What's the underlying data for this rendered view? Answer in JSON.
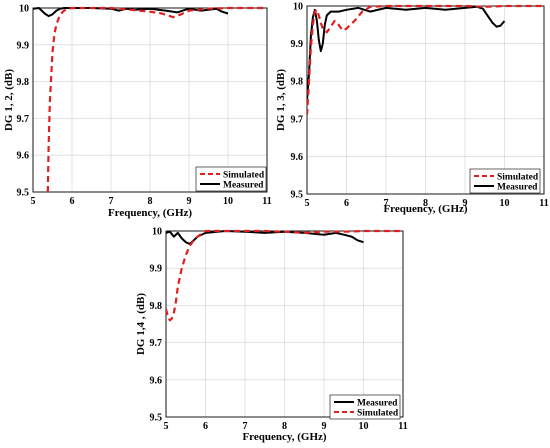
{
  "chart_data": [
    {
      "type": "line",
      "xlabel": "Frequency, (GHz)",
      "ylabel": "DG 1, 2, (dB)",
      "xlim": [
        5,
        11
      ],
      "ylim": [
        9.5,
        10
      ],
      "xticks": [
        "5",
        "6",
        "7",
        "8",
        "9",
        "10",
        "11"
      ],
      "yticks": [
        "9.5",
        "9.6",
        "9.7",
        "9.8",
        "9.9",
        "10"
      ],
      "grid": true,
      "legend_position": "bottom-right",
      "series": [
        {
          "name": "Simulated",
          "color": "#e02020",
          "style": "dashed",
          "x": [
            5.38,
            5.4,
            5.43,
            5.47,
            5.5,
            5.55,
            5.6,
            5.65,
            5.7,
            5.8,
            5.9,
            6.0,
            6.5,
            7.0,
            7.5,
            8.0,
            8.3,
            8.6,
            8.8,
            9.0,
            9.5,
            10.0,
            10.5,
            11.0
          ],
          "y": [
            9.5,
            9.62,
            9.74,
            9.82,
            9.88,
            9.93,
            9.955,
            9.97,
            9.983,
            9.993,
            9.998,
            10.0,
            10.0,
            10.0,
            9.995,
            9.99,
            9.985,
            9.975,
            9.983,
            9.993,
            9.998,
            10.0,
            10.0,
            10.0
          ]
        },
        {
          "name": "Measured",
          "color": "#000000",
          "style": "solid",
          "x": [
            5.0,
            5.15,
            5.3,
            5.4,
            5.5,
            5.6,
            5.7,
            5.8,
            6.0,
            6.5,
            7.0,
            7.2,
            7.4,
            7.6,
            8.0,
            8.4,
            8.7,
            8.9,
            9.0,
            9.3,
            9.5,
            9.7,
            9.85,
            10.0
          ],
          "y": [
            9.998,
            10.0,
            9.985,
            9.978,
            9.983,
            9.993,
            9.998,
            10.0,
            10.0,
            10.0,
            9.998,
            9.993,
            9.998,
            9.995,
            9.998,
            9.993,
            9.988,
            9.995,
            9.998,
            9.993,
            9.995,
            9.998,
            9.99,
            9.985
          ]
        }
      ]
    },
    {
      "type": "line",
      "xlabel": "Frequency, (GHz)",
      "ylabel": "DG 1, 3, (dB)",
      "xlim": [
        5,
        11
      ],
      "ylim": [
        9.5,
        10
      ],
      "xticks": [
        "5",
        "6",
        "7",
        "8",
        "9",
        "10",
        "11"
      ],
      "yticks": [
        "9.5",
        "9.6",
        "9.7",
        "9.8",
        "9.9",
        "10"
      ],
      "grid": true,
      "legend_position": "bottom-right",
      "series": [
        {
          "name": "Simulated",
          "color": "#e02020",
          "style": "dashed",
          "x": [
            5.0,
            5.05,
            5.1,
            5.15,
            5.2,
            5.25,
            5.3,
            5.35,
            5.4,
            5.5,
            5.6,
            5.7,
            5.8,
            5.9,
            6.0,
            6.2,
            6.4,
            6.6,
            7.0,
            7.5,
            8.0,
            8.5,
            9.0,
            9.5,
            10.0,
            10.5,
            11.0
          ],
          "y": [
            9.71,
            9.8,
            9.89,
            9.95,
            9.985,
            9.99,
            9.975,
            9.955,
            9.94,
            9.93,
            9.945,
            9.96,
            9.95,
            9.935,
            9.94,
            9.96,
            9.985,
            9.998,
            10.0,
            10.0,
            10.0,
            10.0,
            10.0,
            9.998,
            10.0,
            10.0,
            10.0
          ]
        },
        {
          "name": "Measured",
          "color": "#000000",
          "style": "solid",
          "x": [
            5.0,
            5.05,
            5.1,
            5.15,
            5.2,
            5.25,
            5.3,
            5.35,
            5.4,
            5.45,
            5.5,
            5.6,
            5.8,
            6.0,
            6.3,
            6.6,
            7.0,
            7.5,
            8.0,
            8.5,
            9.0,
            9.3,
            9.45,
            9.6,
            9.7,
            9.8,
            9.9,
            10.0
          ],
          "y": [
            9.75,
            9.82,
            9.92,
            9.97,
            9.99,
            9.96,
            9.91,
            9.88,
            9.9,
            9.95,
            9.975,
            9.985,
            9.985,
            9.99,
            9.995,
            9.985,
            9.995,
            9.99,
            9.995,
            9.99,
            9.995,
            9.998,
            9.993,
            9.97,
            9.955,
            9.945,
            9.948,
            9.96
          ]
        }
      ]
    },
    {
      "type": "line",
      "xlabel": "Frequency, (GHz)",
      "ylabel": "DG 1,4 , (dB)",
      "xlim": [
        5,
        11
      ],
      "ylim": [
        9.5,
        10
      ],
      "xticks": [
        "5",
        "6",
        "7",
        "8",
        "9",
        "10",
        "11"
      ],
      "yticks": [
        "9.5",
        "9.6",
        "9.7",
        "9.8",
        "9.9",
        "10"
      ],
      "grid": true,
      "legend_position": "bottom-right",
      "series": [
        {
          "name": "Simulated",
          "color": "#e02020",
          "style": "dashed",
          "x": [
            5.0,
            5.05,
            5.1,
            5.15,
            5.2,
            5.25,
            5.3,
            5.4,
            5.5,
            5.6,
            5.7,
            5.8,
            5.9,
            6.0,
            6.5,
            7.0,
            7.5,
            8.0,
            8.5,
            9.0,
            9.5,
            10.0,
            10.5,
            11.0
          ],
          "y": [
            9.79,
            9.77,
            9.76,
            9.765,
            9.78,
            9.81,
            9.85,
            9.9,
            9.935,
            9.96,
            9.975,
            9.985,
            9.993,
            10.0,
            10.0,
            10.0,
            10.0,
            9.998,
            9.995,
            9.998,
            9.998,
            10.0,
            10.0,
            10.0
          ]
        },
        {
          "name": "Measured",
          "color": "#000000",
          "style": "solid",
          "x": [
            5.0,
            5.1,
            5.2,
            5.3,
            5.4,
            5.5,
            5.6,
            5.7,
            5.8,
            6.0,
            6.5,
            7.0,
            7.5,
            8.0,
            8.5,
            9.0,
            9.3,
            9.5,
            9.7,
            9.85,
            10.0
          ],
          "y": [
            9.995,
            9.998,
            9.985,
            9.995,
            9.98,
            9.97,
            9.965,
            9.975,
            9.985,
            9.995,
            10.0,
            9.998,
            9.995,
            9.998,
            9.995,
            9.99,
            9.995,
            9.99,
            9.985,
            9.975,
            9.97
          ]
        }
      ]
    }
  ],
  "panel_legend_order": [
    [
      "Simulated",
      "Measured"
    ],
    [
      "Simulated",
      "Measured"
    ],
    [
      "Measured",
      "Simulated"
    ]
  ]
}
